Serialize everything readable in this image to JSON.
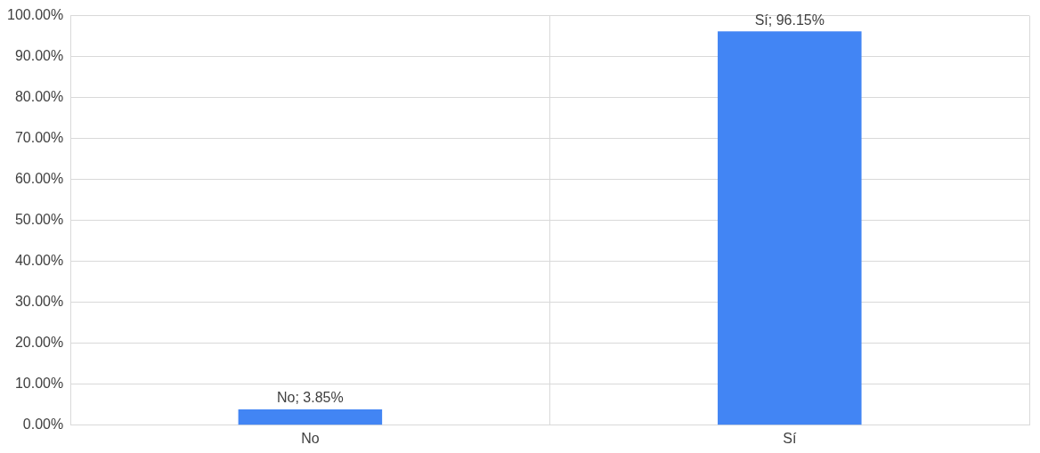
{
  "chart_data": {
    "type": "bar",
    "categories": [
      "No",
      "Sí"
    ],
    "values": [
      3.85,
      96.15
    ],
    "color": "#4285f4",
    "value_labels": [
      "No; 3.85%",
      "Sí; 96.15%"
    ],
    "ylim": [
      0,
      100
    ],
    "yticks": [
      {
        "value": 0,
        "label": "0.00%"
      },
      {
        "value": 10,
        "label": "10.00%"
      },
      {
        "value": 20,
        "label": "20.00%"
      },
      {
        "value": 30,
        "label": "30.00%"
      },
      {
        "value": 40,
        "label": "40.00%"
      },
      {
        "value": 50,
        "label": "50.00%"
      },
      {
        "value": 60,
        "label": "60.00%"
      },
      {
        "value": 70,
        "label": "70.00%"
      },
      {
        "value": 80,
        "label": "80.00%"
      },
      {
        "value": 90,
        "label": "90.00%"
      },
      {
        "value": 100,
        "label": "100.00%"
      }
    ],
    "grid": true,
    "legend": false
  }
}
